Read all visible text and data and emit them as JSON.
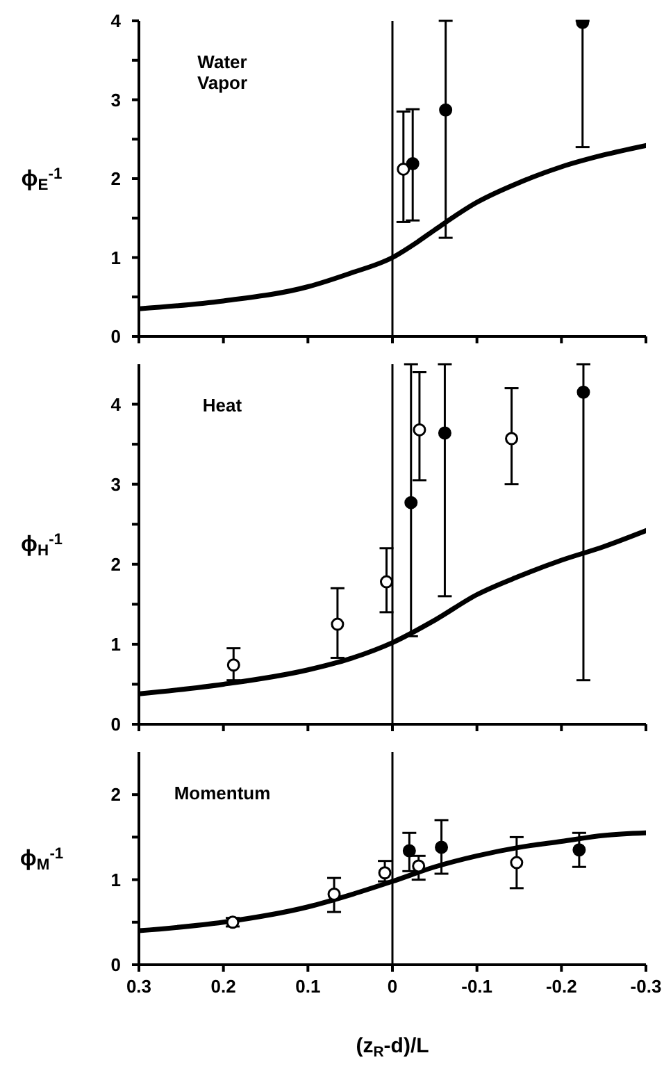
{
  "chart_data": [
    {
      "type": "scatter",
      "ylabel": "ϕ$_{E}$$^{-1}$",
      "annotations": [
        "Water Vapor"
      ],
      "xlim": [
        0.3,
        -0.3
      ],
      "xticks": [
        0.3,
        0.2,
        0.1,
        0,
        -0.1,
        -0.2,
        -0.3
      ],
      "ylim": [
        0,
        4
      ],
      "yticks": [
        0,
        {
          "value": 0.5,
          "label": null
        },
        1,
        {
          "value": 1.5,
          "label": null
        },
        2,
        {
          "value": 2.5,
          "label": null
        },
        3,
        {
          "value": 3.5,
          "label": null
        },
        4
      ],
      "tick_labels": "y",
      "ref_lines": [
        {
          "axis": "x",
          "value": 0,
          "color": "#000000"
        }
      ],
      "series": [
        {
          "type": "line",
          "color": "#000000",
          "x": [
            0.3,
            0.2,
            0.1,
            0.05,
            0,
            -0.03,
            -0.05,
            -0.1,
            -0.15,
            -0.2,
            -0.25,
            -0.3
          ],
          "values": [
            0.35,
            0.45,
            0.63,
            0.8,
            1.0,
            1.2,
            1.35,
            1.7,
            1.95,
            2.15,
            2.3,
            2.42
          ]
        },
        {
          "type": "scatter",
          "marker": "circle",
          "color": "#ffffff",
          "x": [
            -0.013
          ],
          "values": [
            2.12
          ],
          "errors": [
            [
              1.45,
              2.85
            ]
          ]
        },
        {
          "type": "scatter",
          "marker": "circle",
          "color": "#000000",
          "x": [
            -0.024,
            -0.063,
            -0.225
          ],
          "values": [
            2.19,
            2.87,
            3.98
          ],
          "errors": [
            [
              1.47,
              2.88
            ],
            [
              1.25,
              4
            ],
            [
              2.4,
              4
            ]
          ]
        }
      ]
    },
    {
      "type": "scatter",
      "ylabel": "ϕ$_{H}$$^{-1}$",
      "annotations": [
        "Heat"
      ],
      "xlim": [
        0.3,
        -0.3
      ],
      "xticks": [
        0.3,
        0.2,
        0.1,
        0,
        -0.1,
        -0.2,
        -0.3
      ],
      "ylim": [
        0,
        4.5
      ],
      "yticks": [
        0,
        {
          "value": 0.5,
          "label": null
        },
        1,
        {
          "value": 1.5,
          "label": null
        },
        2,
        {
          "value": 2.5,
          "label": null
        },
        3,
        {
          "value": 3.5,
          "label": null
        },
        4
      ],
      "tick_labels": "y",
      "ref_lines": [
        {
          "axis": "x",
          "value": 0,
          "color": "#000000"
        }
      ],
      "series": [
        {
          "type": "line",
          "color": "#000000",
          "x": [
            0.3,
            0.2,
            0.1,
            0.05,
            0,
            -0.05,
            -0.1,
            -0.15,
            -0.2,
            -0.25,
            -0.3
          ],
          "values": [
            0.38,
            0.5,
            0.68,
            0.82,
            1.02,
            1.3,
            1.62,
            1.85,
            2.05,
            2.22,
            2.42
          ]
        },
        {
          "type": "scatter",
          "marker": "circle",
          "color": "#ffffff",
          "x": [
            0.188,
            0.065,
            0.007,
            -0.032,
            -0.141
          ],
          "values": [
            0.74,
            1.25,
            1.78,
            3.68,
            3.57
          ],
          "errors": [
            [
              0.55,
              0.95
            ],
            [
              0.83,
              1.7
            ],
            [
              1.4,
              2.2
            ],
            [
              3.05,
              4.4
            ],
            [
              3.0,
              4.2
            ]
          ]
        },
        {
          "type": "scatter",
          "marker": "circle",
          "color": "#000000",
          "x": [
            -0.022,
            -0.062,
            -0.226
          ],
          "values": [
            2.77,
            3.64,
            4.15
          ],
          "errors": [
            [
              1.1,
              4.5
            ],
            [
              1.6,
              4.5
            ],
            [
              0.55,
              4.5
            ]
          ]
        }
      ]
    },
    {
      "type": "scatter",
      "ylabel": "ϕ$_{M}$$^{-1}$",
      "xlabel": "(z$_{R}$-d)/L",
      "annotations": [
        "Momentum"
      ],
      "xlim": [
        0.3,
        -0.3
      ],
      "xticks": [
        0.3,
        0.2,
        0.1,
        0,
        -0.1,
        -0.2,
        -0.3
      ],
      "ylim": [
        0,
        2.5
      ],
      "yticks": [
        0,
        {
          "value": 0.5,
          "label": null
        },
        1,
        {
          "value": 1.5,
          "label": null
        },
        2
      ],
      "ref_lines": [
        {
          "axis": "x",
          "value": 0,
          "color": "#000000"
        }
      ],
      "series": [
        {
          "type": "line",
          "color": "#000000",
          "x": [
            0.3,
            0.2,
            0.1,
            0.05,
            0,
            -0.05,
            -0.1,
            -0.15,
            -0.2,
            -0.25,
            -0.3
          ],
          "values": [
            0.4,
            0.5,
            0.68,
            0.82,
            0.98,
            1.15,
            1.28,
            1.38,
            1.45,
            1.52,
            1.55
          ]
        },
        {
          "type": "scatter",
          "marker": "circle",
          "color": "#ffffff",
          "x": [
            0.189,
            0.069,
            0.009,
            -0.031,
            -0.147
          ],
          "values": [
            0.5,
            0.83,
            1.08,
            1.16,
            1.2
          ],
          "errors": [
            [
              0.45,
              0.55
            ],
            [
              0.62,
              1.02
            ],
            [
              0.98,
              1.22
            ],
            [
              1.0,
              1.28
            ],
            [
              0.9,
              1.5
            ]
          ]
        },
        {
          "type": "scatter",
          "marker": "circle",
          "color": "#000000",
          "x": [
            -0.02,
            -0.058,
            -0.221
          ],
          "values": [
            1.34,
            1.38,
            1.35
          ],
          "errors": [
            [
              1.1,
              1.55
            ],
            [
              1.07,
              1.7
            ],
            [
              1.15,
              1.55
            ]
          ]
        }
      ]
    }
  ]
}
